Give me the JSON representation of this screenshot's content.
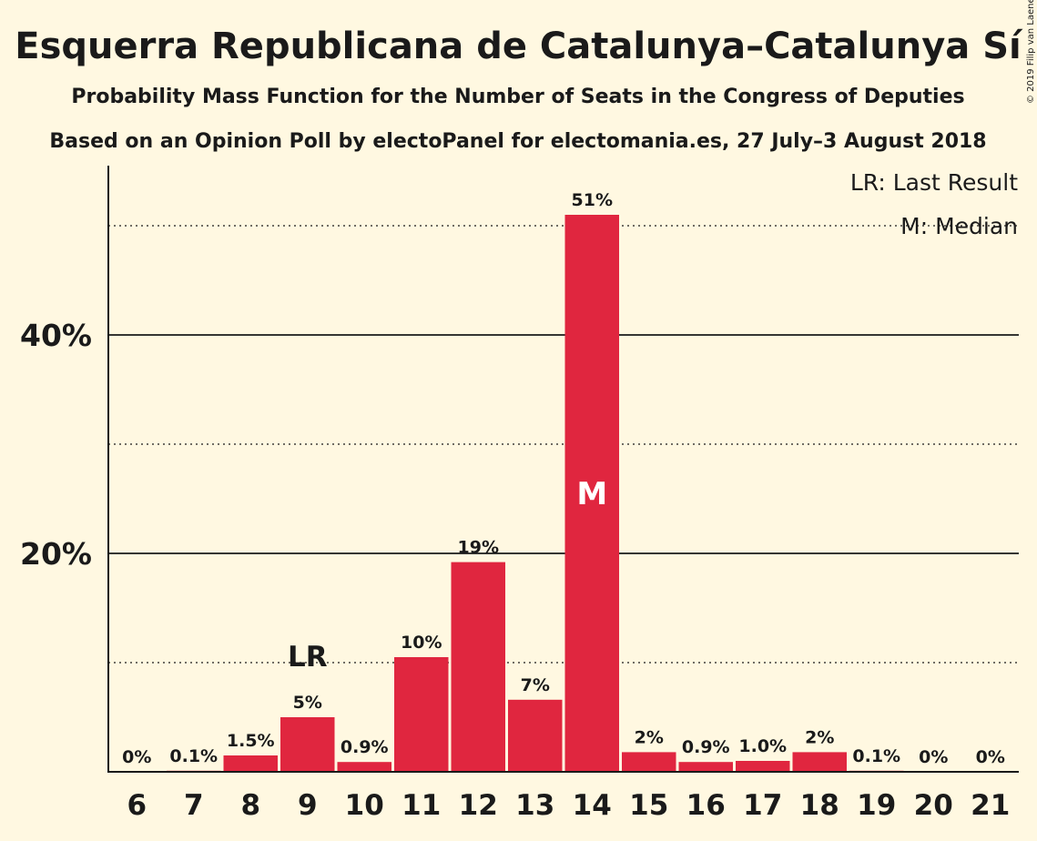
{
  "chart_data": {
    "type": "bar",
    "title": "Esquerra Republicana de Catalunya–Catalunya Sí",
    "subtitle": "Probability Mass Function for the Number of Seats in the Congress of Deputies",
    "subtitle2": "Based on an Opinion Poll by electoPanel for electomania.es, 27 July–3 August 2018",
    "copyright": "© 2019 Filip van Laenen",
    "categories": [
      "6",
      "7",
      "8",
      "9",
      "10",
      "11",
      "12",
      "13",
      "14",
      "15",
      "16",
      "17",
      "18",
      "19",
      "20",
      "21"
    ],
    "values": [
      0,
      0.1,
      1.5,
      5,
      0.9,
      10.5,
      19.2,
      6.6,
      51,
      1.8,
      0.9,
      1.0,
      1.8,
      0.1,
      0,
      0
    ],
    "data_labels": [
      "0%",
      "0.1%",
      "1.5%",
      "5%",
      "0.9%",
      "10%",
      "19%",
      "7%",
      "51%",
      "2%",
      "0.9%",
      "1.0%",
      "2%",
      "0.1%",
      "0%",
      "0%"
    ],
    "ylim": [
      0,
      55
    ],
    "yticks": [
      {
        "value": 20,
        "label": "20%"
      },
      {
        "value": 40,
        "label": "40%"
      }
    ],
    "minor_gridlines": [
      10,
      30,
      50
    ],
    "last_result": {
      "category": "9",
      "label": "LR"
    },
    "median": {
      "category": "14",
      "label": "M"
    },
    "legend": {
      "position": "top-right",
      "entries": [
        "LR: Last Result",
        "M: Median"
      ]
    },
    "bar_color": "#E0263F",
    "background_color": "#FFF8E1"
  }
}
